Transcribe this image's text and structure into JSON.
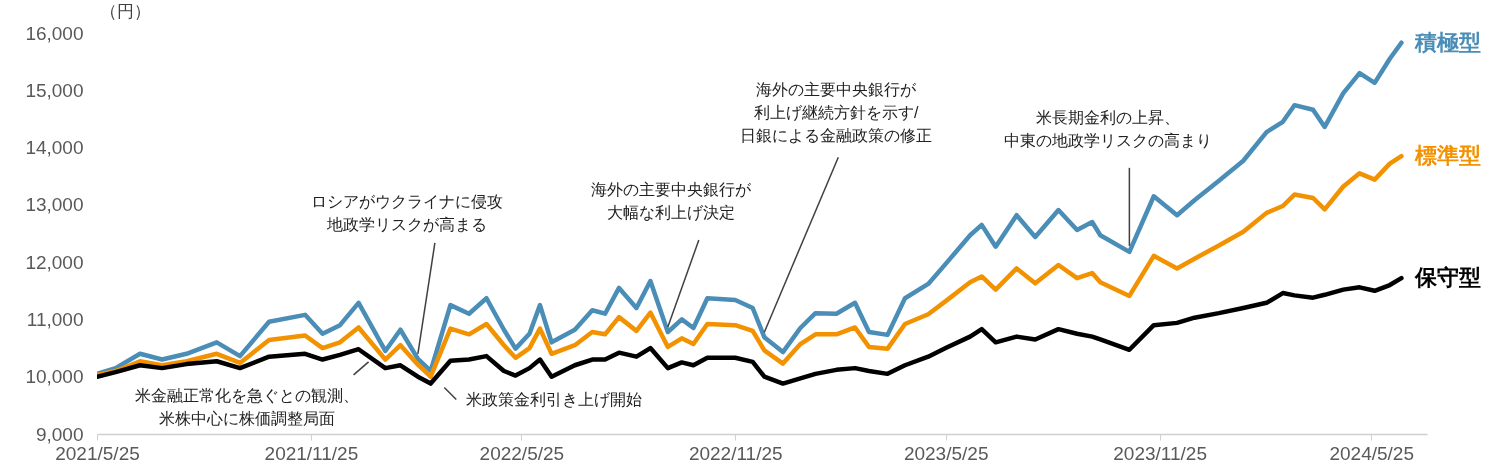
{
  "chart_data": {
    "type": "line",
    "ylabel": "（円）",
    "x": [
      "2021-05-25",
      "2021-06-10",
      "2021-07-01",
      "2021-07-20",
      "2021-08-10",
      "2021-09-05",
      "2021-09-25",
      "2021-10-20",
      "2021-11-20",
      "2021-12-05",
      "2021-12-20",
      "2022-01-05",
      "2022-01-28",
      "2022-02-10",
      "2022-02-25",
      "2022-03-08",
      "2022-03-25",
      "2022-04-10",
      "2022-04-25",
      "2022-05-10",
      "2022-05-20",
      "2022-06-01",
      "2022-06-10",
      "2022-06-20",
      "2022-07-10",
      "2022-07-25",
      "2022-08-05",
      "2022-08-17",
      "2022-09-01",
      "2022-09-13",
      "2022-09-28",
      "2022-10-10",
      "2022-10-20",
      "2022-11-01",
      "2022-11-25",
      "2022-12-10",
      "2022-12-20",
      "2023-01-05",
      "2023-01-20",
      "2023-02-02",
      "2023-02-20",
      "2023-03-08",
      "2023-03-20",
      "2023-04-05",
      "2023-04-20",
      "2023-05-10",
      "2023-05-25",
      "2023-06-15",
      "2023-06-25",
      "2023-07-07",
      "2023-07-25",
      "2023-08-10",
      "2023-08-30",
      "2023-09-15",
      "2023-09-28",
      "2023-10-05",
      "2023-10-30",
      "2023-11-20",
      "2023-12-10",
      "2023-12-25",
      "2024-01-15",
      "2024-02-05",
      "2024-02-25",
      "2024-03-10",
      "2024-03-20",
      "2024-04-05",
      "2024-04-15",
      "2024-05-01",
      "2024-05-15",
      "2024-05-28",
      "2024-06-10",
      "2024-06-20"
    ],
    "series": [
      {
        "name": "積極型",
        "color": "#4a8db7",
        "values": [
          10050,
          10150,
          10400,
          10300,
          10400,
          10600,
          10360,
          10960,
          11080,
          10750,
          10900,
          11290,
          10450,
          10820,
          10310,
          10100,
          11250,
          11100,
          11370,
          10820,
          10490,
          10750,
          11250,
          10600,
          10820,
          11160,
          11100,
          11550,
          11200,
          11670,
          10780,
          11000,
          10850,
          11370,
          11340,
          11200,
          10690,
          10430,
          10850,
          11110,
          11100,
          11290,
          10780,
          10730,
          11370,
          11620,
          11970,
          12470,
          12650,
          12270,
          12820,
          12440,
          12910,
          12560,
          12700,
          12470,
          12180,
          13150,
          12820,
          13080,
          13420,
          13770,
          14270,
          14450,
          14740,
          14660,
          14360,
          14950,
          15300,
          15130,
          15550,
          15830
        ]
      },
      {
        "name": "標準型",
        "color": "#f39200",
        "values": [
          10030,
          10100,
          10270,
          10200,
          10270,
          10400,
          10240,
          10640,
          10720,
          10500,
          10600,
          10860,
          10300,
          10550,
          10210,
          10000,
          10840,
          10740,
          10920,
          10550,
          10330,
          10500,
          10840,
          10400,
          10550,
          10780,
          10740,
          11040,
          10800,
          11120,
          10520,
          10670,
          10570,
          10920,
          10900,
          10800,
          10460,
          10230,
          10570,
          10740,
          10740,
          10860,
          10520,
          10490,
          10920,
          11090,
          11320,
          11650,
          11750,
          11520,
          11890,
          11630,
          11950,
          11720,
          11810,
          11650,
          11410,
          12110,
          11890,
          12060,
          12290,
          12530,
          12860,
          12980,
          13180,
          13120,
          12920,
          13320,
          13550,
          13440,
          13720,
          13850
        ]
      },
      {
        "name": "保守型",
        "color": "#000000",
        "values": [
          10000,
          10080,
          10200,
          10150,
          10220,
          10270,
          10150,
          10350,
          10400,
          10300,
          10380,
          10480,
          10150,
          10200,
          10000,
          9880,
          10280,
          10300,
          10360,
          10100,
          10020,
          10150,
          10300,
          10000,
          10200,
          10300,
          10300,
          10420,
          10350,
          10500,
          10150,
          10250,
          10200,
          10330,
          10330,
          10260,
          10000,
          9880,
          9970,
          10050,
          10120,
          10150,
          10100,
          10050,
          10200,
          10350,
          10500,
          10700,
          10830,
          10600,
          10700,
          10650,
          10830,
          10750,
          10700,
          10650,
          10470,
          10900,
          10940,
          11030,
          11110,
          11200,
          11290,
          11460,
          11420,
          11380,
          11430,
          11520,
          11560,
          11500,
          11600,
          11720
        ]
      }
    ],
    "xlim": [
      "2021-05-25",
      "2024-07-12"
    ],
    "xticks": [
      {
        "value": "2021-05-25",
        "label": "2021/5/25"
      },
      {
        "value": "2021-11-25",
        "label": "2021/11/25"
      },
      {
        "value": "2022-05-25",
        "label": "2022/5/25"
      },
      {
        "value": "2022-11-25",
        "label": "2022/11/25"
      },
      {
        "value": "2023-05-25",
        "label": "2023/5/25"
      },
      {
        "value": "2023-11-25",
        "label": "2023/11/25"
      },
      {
        "value": "2024-05-25",
        "label": "2024/5/25"
      }
    ],
    "ylim": [
      9000,
      16000
    ],
    "yticks": [
      {
        "value": 9000,
        "label": "9,000"
      },
      {
        "value": 10000,
        "label": "10,000"
      },
      {
        "value": 11000,
        "label": "11,000"
      },
      {
        "value": 12000,
        "label": "12,000"
      },
      {
        "value": 13000,
        "label": "13,000"
      },
      {
        "value": 14000,
        "label": "14,000"
      },
      {
        "value": 15000,
        "label": "15,000"
      },
      {
        "value": 16000,
        "label": "16,000"
      }
    ],
    "legend": false,
    "annotations": [
      {
        "text": "米金融正常化を急ぐとの観測、米株中心に株価調整局面",
        "x": "2022-01-05",
        "y": 10450
      },
      {
        "text": "ロシアがウクライナに侵攻地政学リスクが高まる",
        "x": "2022-02-25",
        "y": 10310
      },
      {
        "text": "米政策金利引き上げ開始",
        "x": "2022-03-18",
        "y": 9950
      },
      {
        "text": "海外の主要中央銀行が大幅な利上げ決定",
        "x": "2022-09-28",
        "y": 10780
      },
      {
        "text": "海外の主要中央銀行が利上げ継続方針を示す/日銀による金融政策の修正",
        "x": "2022-12-20",
        "y": 10690
      },
      {
        "text": "米長期金利の上昇、中東の地政学リスクの高まり",
        "x": "2023-10-30",
        "y": 12180
      }
    ]
  }
}
